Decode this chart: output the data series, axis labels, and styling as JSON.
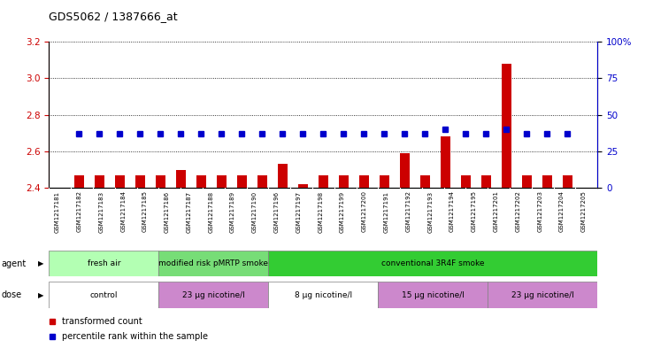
{
  "title": "GDS5062 / 1387666_at",
  "samples": [
    "GSM1217181",
    "GSM1217182",
    "GSM1217183",
    "GSM1217184",
    "GSM1217185",
    "GSM1217186",
    "GSM1217187",
    "GSM1217188",
    "GSM1217189",
    "GSM1217190",
    "GSM1217196",
    "GSM1217197",
    "GSM1217198",
    "GSM1217199",
    "GSM1217200",
    "GSM1217191",
    "GSM1217192",
    "GSM1217193",
    "GSM1217194",
    "GSM1217195",
    "GSM1217201",
    "GSM1217202",
    "GSM1217203",
    "GSM1217204",
    "GSM1217205"
  ],
  "bar_values": [
    2.47,
    2.47,
    2.47,
    2.47,
    2.47,
    2.5,
    2.47,
    2.47,
    2.47,
    2.47,
    2.53,
    2.42,
    2.47,
    2.47,
    2.47,
    2.47,
    2.59,
    2.47,
    2.68,
    2.47,
    2.47,
    3.08,
    2.47,
    2.47,
    2.47
  ],
  "percentile_values": [
    37,
    37,
    37,
    37,
    37,
    37,
    37,
    37,
    37,
    37,
    37,
    37,
    37,
    37,
    37,
    37,
    37,
    37,
    40,
    37,
    37,
    40,
    37,
    37,
    37
  ],
  "ylim_left": [
    2.4,
    3.2
  ],
  "ylim_right": [
    0,
    100
  ],
  "yticks_left": [
    2.4,
    2.6,
    2.8,
    3.0,
    3.2
  ],
  "yticks_right": [
    0,
    25,
    50,
    75,
    100
  ],
  "bar_color": "#cc0000",
  "dot_color": "#0000cc",
  "bar_width": 0.5,
  "agent_groups": [
    {
      "label": "fresh air",
      "start": 0,
      "end": 5,
      "color": "#b3ffb3"
    },
    {
      "label": "modified risk pMRTP smoke",
      "start": 5,
      "end": 10,
      "color": "#77dd77"
    },
    {
      "label": "conventional 3R4F smoke",
      "start": 10,
      "end": 25,
      "color": "#33cc33"
    }
  ],
  "dose_groups": [
    {
      "label": "control",
      "start": 0,
      "end": 5,
      "color": "#ffffff"
    },
    {
      "label": "23 μg nicotine/l",
      "start": 5,
      "end": 10,
      "color": "#cc88cc"
    },
    {
      "label": "8 μg nicotine/l",
      "start": 10,
      "end": 15,
      "color": "#ffffff"
    },
    {
      "label": "15 μg nicotine/l",
      "start": 15,
      "end": 20,
      "color": "#cc88cc"
    },
    {
      "label": "23 μg nicotine/l",
      "start": 20,
      "end": 25,
      "color": "#cc88cc"
    }
  ],
  "legend_items": [
    {
      "label": "transformed count",
      "color": "#cc0000"
    },
    {
      "label": "percentile rank within the sample",
      "color": "#0000cc"
    }
  ],
  "fig_width": 7.38,
  "fig_height": 3.93,
  "dpi": 100
}
